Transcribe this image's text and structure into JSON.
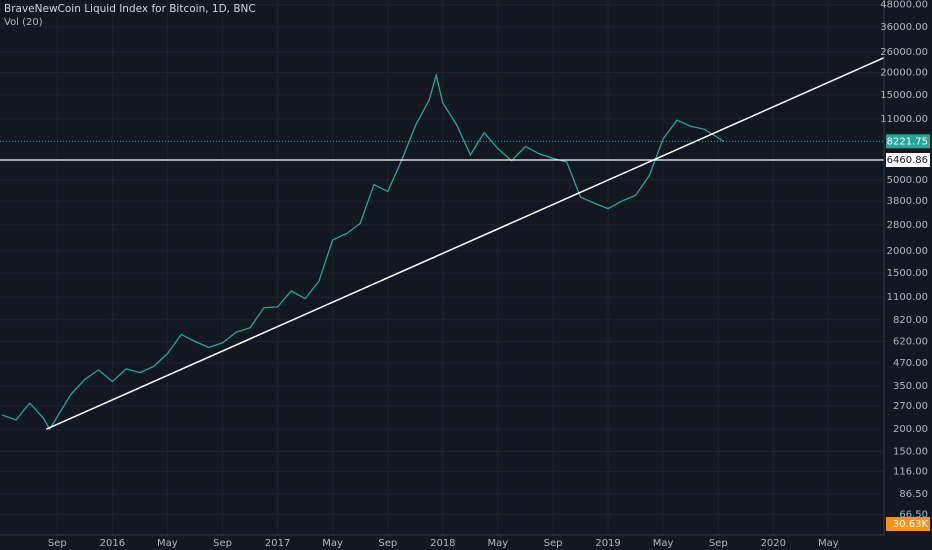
{
  "chart_data": {
    "type": "line",
    "title": "BraveNewCoin Liquid Index for Bitcoin, 1D, BNC",
    "subtitle": "Vol (20)",
    "log_scale": true,
    "grid": true,
    "color": "#26a69a",
    "x": [
      2015.333,
      2015.417,
      2015.5,
      2015.583,
      2015.62,
      2015.667,
      2015.75,
      2015.833,
      2015.917,
      2016.0,
      2016.083,
      2016.167,
      2016.25,
      2016.333,
      2016.417,
      2016.5,
      2016.583,
      2016.667,
      2016.75,
      2016.833,
      2016.917,
      2017.0,
      2017.083,
      2017.167,
      2017.25,
      2017.333,
      2017.417,
      2017.5,
      2017.583,
      2017.667,
      2017.75,
      2017.833,
      2017.917,
      2017.96,
      2018.0,
      2018.083,
      2018.167,
      2018.25,
      2018.333,
      2018.417,
      2018.5,
      2018.583,
      2018.667,
      2018.75,
      2018.833,
      2018.917,
      2019.0,
      2019.083,
      2019.167,
      2019.25,
      2019.333,
      2019.417,
      2019.5,
      2019.583,
      2019.7
    ],
    "values": [
      240,
      225,
      280,
      230,
      200,
      235,
      315,
      380,
      430,
      370,
      435,
      415,
      450,
      530,
      680,
      620,
      575,
      610,
      700,
      740,
      960,
      970,
      1190,
      1080,
      1350,
      2300,
      2500,
      2850,
      4700,
      4300,
      6400,
      10000,
      14000,
      19300,
      13500,
      10200,
      6900,
      9200,
      7500,
      6400,
      7700,
      7000,
      6600,
      6300,
      4000,
      3700,
      3450,
      3800,
      4100,
      5300,
      8500,
      10800,
      10000,
      9600,
      8221.75
    ],
    "xlim": [
      2015.32,
      2020.67
    ],
    "ylim": [
      51,
      51000
    ],
    "xticks": [
      {
        "value": 2015.667,
        "label": "Sep"
      },
      2016,
      {
        "value": 2016.333,
        "label": "May"
      },
      {
        "value": 2016.667,
        "label": "Sep"
      },
      2017,
      {
        "value": 2017.333,
        "label": "May"
      },
      {
        "value": 2017.667,
        "label": "Sep"
      },
      2018,
      {
        "value": 2018.333,
        "label": "May"
      },
      {
        "value": 2018.667,
        "label": "Sep"
      },
      2019,
      {
        "value": 2019.333,
        "label": "May"
      },
      {
        "value": 2019.667,
        "label": "Sep"
      },
      2020,
      {
        "value": 2020.333,
        "label": "May"
      }
    ],
    "yticks": [
      {
        "value": 48000,
        "label": "48000.00"
      },
      {
        "value": 36000,
        "label": "36000.00"
      },
      {
        "value": 26000,
        "label": "26000.00"
      },
      {
        "value": 20000,
        "label": "20000.00"
      },
      {
        "value": 15000,
        "label": "15000.00"
      },
      {
        "value": 11000,
        "label": "11000.00"
      },
      {
        "value": 5000,
        "label": "5000.00"
      },
      {
        "value": 3800,
        "label": "3800.00"
      },
      {
        "value": 2800,
        "label": "2800.00"
      },
      {
        "value": 2000,
        "label": "2000.00"
      },
      {
        "value": 1500,
        "label": "1500.00"
      },
      {
        "value": 1100,
        "label": "1100.00"
      },
      {
        "value": 820,
        "label": "820.00"
      },
      {
        "value": 620,
        "label": "620.00"
      },
      {
        "value": 470,
        "label": "470.00"
      },
      {
        "value": 350,
        "label": "350.00"
      },
      {
        "value": 270,
        "label": "270.00"
      },
      {
        "value": 200,
        "label": "200.00"
      },
      {
        "value": 150,
        "label": "150.00"
      },
      {
        "value": 116,
        "label": "116.00"
      },
      {
        "value": 86.5,
        "label": "86.50"
      },
      {
        "value": 66.5,
        "label": "66.50"
      }
    ],
    "last_price": 8221.75,
    "horizontal_line": 6460.86,
    "trend_line": {
      "x": [
        2015.6,
        2020.67
      ],
      "values": [
        200,
        24200
      ]
    },
    "volume_label": "30.63K"
  }
}
